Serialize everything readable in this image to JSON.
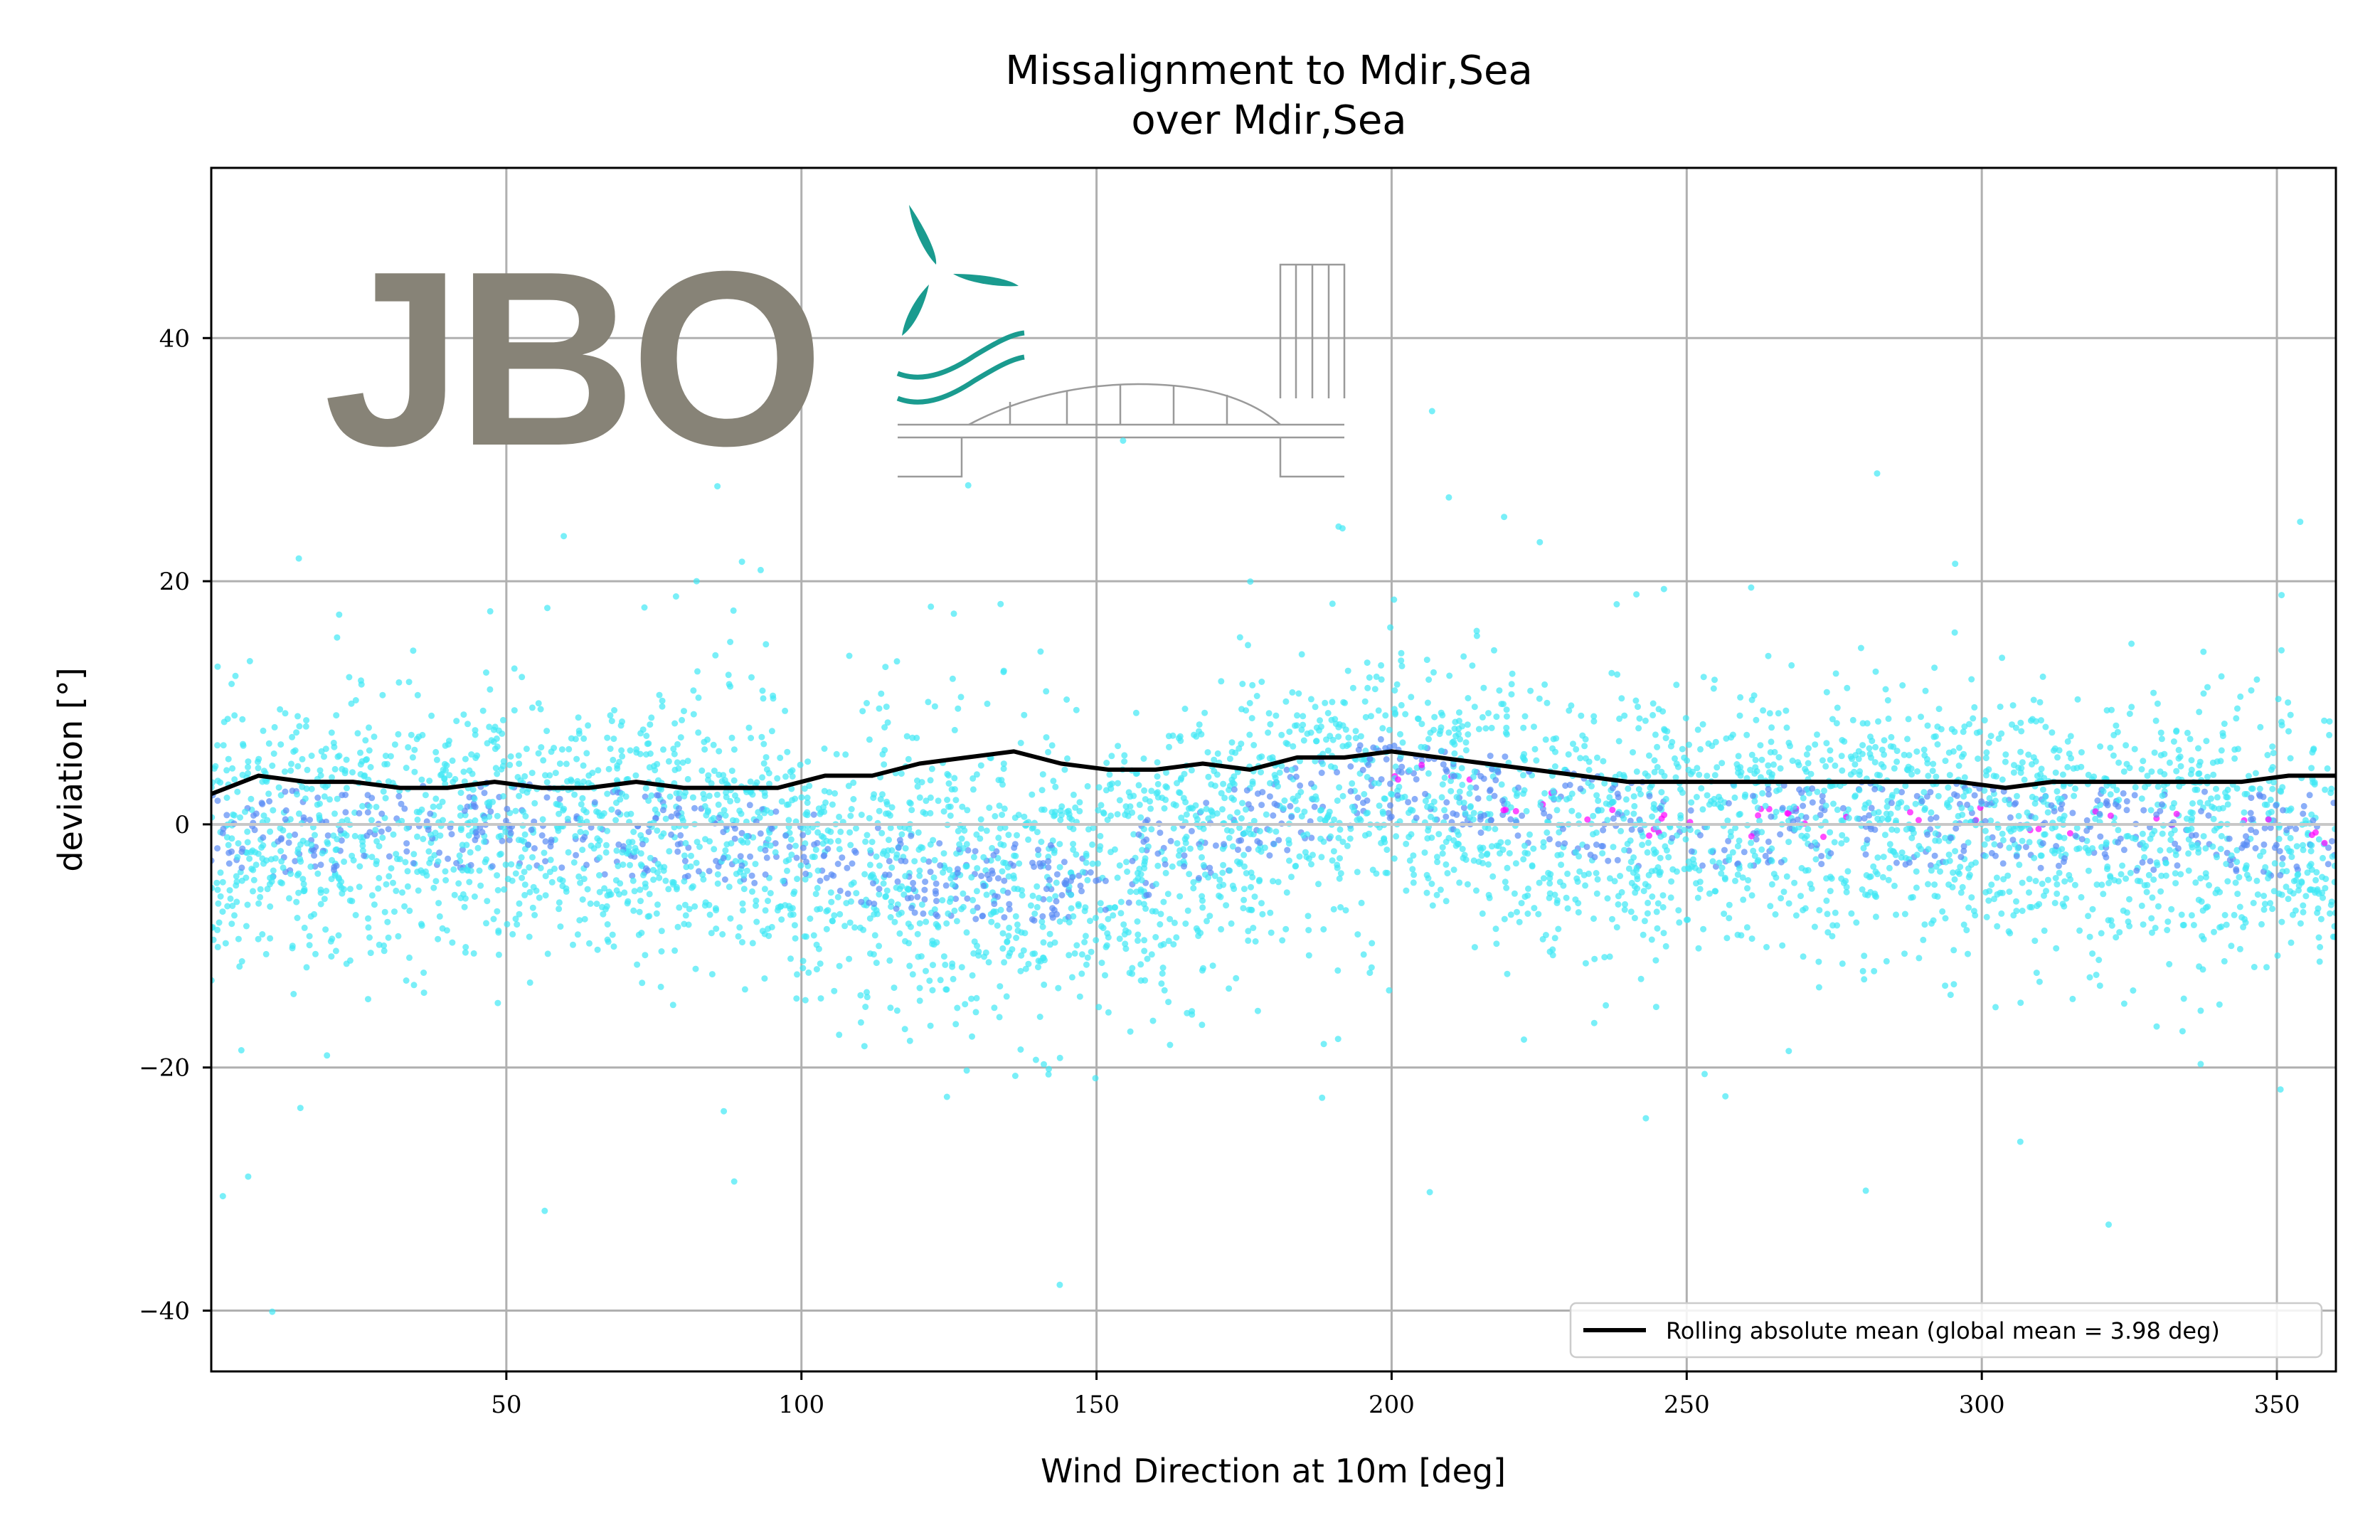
{
  "chart_data": {
    "type": "scatter",
    "title": "Missalignment to Mdir,Sea",
    "subtitle": "over Mdir,Sea",
    "xlabel": "Wind Direction at 10m [deg]",
    "ylabel": "deviation [°]",
    "xlim": [
      0,
      360
    ],
    "ylim": [
      -45,
      54
    ],
    "x_ticks": [
      50,
      100,
      150,
      200,
      250,
      300,
      350
    ],
    "y_ticks": [
      -40,
      -20,
      0,
      20,
      40
    ],
    "y_tick_labels": [
      "−40",
      "−20",
      "0",
      "20",
      "40"
    ],
    "grid": true,
    "legend_position": "bottom-right",
    "colors": {
      "scatter_low_density": "#40e8f5",
      "scatter_mid_density": "#5a8cf5",
      "scatter_high_density": "#ff00ff",
      "rolling_line": "#000000",
      "zero_line": "#c8c8c8",
      "logo_gray": "#878377",
      "logo_teal": "#1a9b8f"
    },
    "series": [
      {
        "name": "Rolling absolute mean (global mean = 3.98 deg)",
        "type": "line",
        "x": [
          0,
          8,
          16,
          24,
          32,
          40,
          48,
          56,
          64,
          72,
          80,
          88,
          96,
          104,
          112,
          120,
          128,
          136,
          144,
          152,
          160,
          168,
          176,
          184,
          192,
          200,
          208,
          216,
          224,
          232,
          240,
          248,
          256,
          264,
          272,
          280,
          288,
          296,
          304,
          312,
          320,
          328,
          336,
          344,
          352,
          360
        ],
        "y": [
          2.5,
          4.0,
          3.5,
          3.5,
          3.0,
          3.0,
          3.5,
          3.0,
          3.0,
          3.5,
          3.0,
          3.0,
          3.0,
          4.0,
          4.0,
          5.0,
          5.5,
          6.0,
          5.0,
          4.5,
          4.5,
          5.0,
          4.5,
          5.5,
          5.5,
          6.0,
          5.5,
          5.0,
          4.5,
          4.0,
          3.5,
          3.5,
          3.5,
          3.5,
          3.5,
          3.5,
          3.5,
          3.5,
          3.0,
          3.5,
          3.5,
          3.5,
          3.5,
          3.5,
          4.0,
          4.0
        ]
      },
      {
        "name": "",
        "type": "scatter",
        "description_of_trend_x": [
          0,
          50,
          100,
          130,
          150,
          200,
          240,
          300,
          360
        ],
        "center_y": [
          -1,
          0,
          -2,
          -5,
          -4,
          4,
          0,
          0,
          -1
        ]
      }
    ]
  },
  "logo": {
    "text": "JBO"
  }
}
